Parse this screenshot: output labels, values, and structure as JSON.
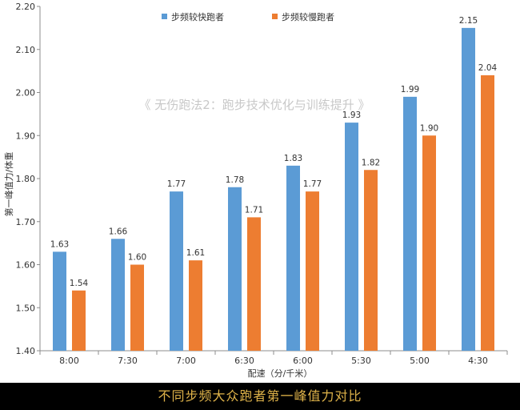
{
  "chart_data": {
    "type": "bar",
    "categories": [
      "8:00",
      "7:30",
      "7:00",
      "6:30",
      "6:00",
      "5:30",
      "5:00",
      "4:30"
    ],
    "series": [
      {
        "name": "步频较快跑者",
        "color": "#5b9bd5",
        "values": [
          1.63,
          1.66,
          1.77,
          1.78,
          1.83,
          1.93,
          1.99,
          2.15
        ]
      },
      {
        "name": "步频较慢跑者",
        "color": "#ed7d31",
        "values": [
          1.54,
          1.6,
          1.61,
          1.71,
          1.77,
          1.82,
          1.9,
          2.04
        ]
      }
    ],
    "value_labels": [
      [
        "1.63",
        "1.66",
        "1.77",
        "1.78",
        "1.83",
        "1.93",
        "1.99",
        "2.15"
      ],
      [
        "1.54",
        "1.60",
        "1.61",
        "1.71",
        "1.77",
        "1.82",
        "1.90",
        "2.04"
      ]
    ],
    "xlabel": "配速（分/千米）",
    "ylabel": "第一峰值力/体重",
    "ylim": [
      1.4,
      2.2
    ],
    "yticks": [
      "1.40",
      "1.50",
      "1.60",
      "1.70",
      "1.80",
      "1.90",
      "2.00",
      "2.10",
      "2.20"
    ],
    "legend_position": "top",
    "grid": false
  },
  "watermark": "《 无伤跑法2：跑步技术优化与训练提升 》",
  "caption": "不同步频大众跑者第一峰值力对比"
}
